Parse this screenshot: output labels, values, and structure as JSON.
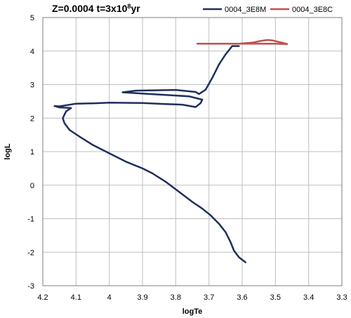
{
  "chart_data": {
    "type": "line",
    "title": "Z=0.0004 t=3x10",
    "title_superscript": "8",
    "title_suffix": "yr",
    "xlabel": "logTe",
    "ylabel": "logL",
    "xlim": [
      4.2,
      3.3
    ],
    "ylim": [
      -3,
      5
    ],
    "x_reversed": true,
    "grid": true,
    "legend_position": "top-right",
    "x_ticks": [
      "4.2",
      "4.1",
      "4",
      "3.9",
      "3.8",
      "3.7",
      "3.6",
      "3.5",
      "3.4",
      "3.3"
    ],
    "y_ticks": [
      "-3",
      "-2",
      "-1",
      "0",
      "1",
      "2",
      "3",
      "4",
      "5"
    ],
    "series": [
      {
        "name": "0004_3E8M",
        "color": "#1f2f5c",
        "points": [
          [
            3.59,
            -2.3
          ],
          [
            3.61,
            -2.15
          ],
          [
            3.625,
            -1.95
          ],
          [
            3.635,
            -1.7
          ],
          [
            3.65,
            -1.4
          ],
          [
            3.67,
            -1.15
          ],
          [
            3.695,
            -0.9
          ],
          [
            3.72,
            -0.7
          ],
          [
            3.75,
            -0.5
          ],
          [
            3.79,
            -0.2
          ],
          [
            3.83,
            0.1
          ],
          [
            3.87,
            0.35
          ],
          [
            3.9,
            0.5
          ],
          [
            3.95,
            0.7
          ],
          [
            4.0,
            0.95
          ],
          [
            4.05,
            1.2
          ],
          [
            4.09,
            1.45
          ],
          [
            4.12,
            1.65
          ],
          [
            4.135,
            1.85
          ],
          [
            4.14,
            2.0
          ],
          [
            4.13,
            2.2
          ],
          [
            4.115,
            2.3
          ],
          [
            4.15,
            2.32
          ],
          [
            4.165,
            2.36
          ],
          [
            4.15,
            2.35
          ],
          [
            4.1,
            2.43
          ],
          [
            4.05,
            2.44
          ],
          [
            4.0,
            2.46
          ],
          [
            3.9,
            2.45
          ],
          [
            3.83,
            2.42
          ],
          [
            3.78,
            2.4
          ],
          [
            3.74,
            2.33
          ],
          [
            3.725,
            2.45
          ],
          [
            3.72,
            2.55
          ],
          [
            3.76,
            2.65
          ],
          [
            3.88,
            2.72
          ],
          [
            3.96,
            2.77
          ],
          [
            3.92,
            2.82
          ],
          [
            3.8,
            2.84
          ],
          [
            3.74,
            2.78
          ],
          [
            3.73,
            2.72
          ],
          [
            3.71,
            2.85
          ],
          [
            3.69,
            3.2
          ],
          [
            3.67,
            3.6
          ],
          [
            3.65,
            3.9
          ],
          [
            3.63,
            4.15
          ],
          [
            3.61,
            4.15
          ]
        ]
      },
      {
        "name": "0004_3E8C",
        "color": "#c0504d",
        "points": [
          [
            3.735,
            4.22
          ],
          [
            3.65,
            4.22
          ],
          [
            3.58,
            4.22
          ],
          [
            3.5,
            4.22
          ],
          [
            3.465,
            4.21
          ],
          [
            3.48,
            4.25
          ],
          [
            3.51,
            4.32
          ],
          [
            3.525,
            4.33
          ],
          [
            3.545,
            4.3
          ],
          [
            3.57,
            4.25
          ],
          [
            3.61,
            4.22
          ],
          [
            3.68,
            4.22
          ]
        ]
      }
    ]
  }
}
